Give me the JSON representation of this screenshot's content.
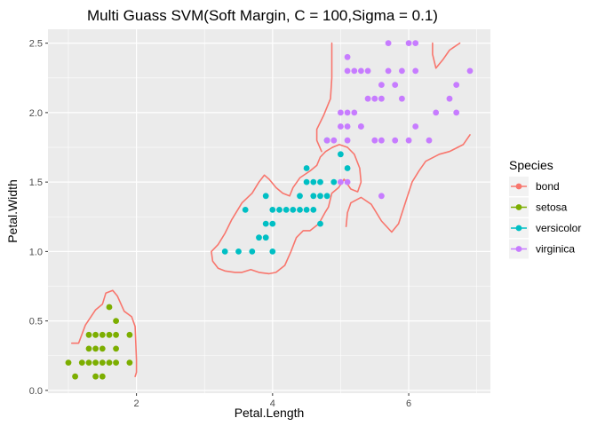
{
  "chart_data": {
    "type": "scatter",
    "title": "Multi Guass SVM(Soft Margin, C = 100,Sigma = 0.1)",
    "xlabel": "Petal.Length",
    "ylabel": "Petal.Width",
    "xlim": [
      0.7,
      7.2
    ],
    "ylim": [
      -0.02,
      2.6
    ],
    "x_ticks": [
      2,
      4,
      6
    ],
    "y_ticks": [
      0.0,
      0.5,
      1.0,
      1.5,
      2.0,
      2.5
    ],
    "x_tick_labels": [
      "2",
      "4",
      "6"
    ],
    "y_tick_labels": [
      "0.0",
      "0.5",
      "1.0",
      "1.5",
      "2.0",
      "2.5"
    ],
    "grid": true,
    "background": "#ebebeb",
    "legend": {
      "title": "Species",
      "placement": "right",
      "entries": [
        {
          "label": "bond",
          "color": "#F8766D"
        },
        {
          "label": "setosa",
          "color": "#7CAE00"
        },
        {
          "label": "versicolor",
          "color": "#00BFC4"
        },
        {
          "label": "virginica",
          "color": "#C77CFF"
        }
      ]
    },
    "series": [
      {
        "name": "setosa",
        "color": "#7CAE00",
        "points": [
          [
            1.0,
            0.2
          ],
          [
            1.1,
            0.1
          ],
          [
            1.2,
            0.2
          ],
          [
            1.3,
            0.2
          ],
          [
            1.3,
            0.3
          ],
          [
            1.3,
            0.4
          ],
          [
            1.4,
            0.1
          ],
          [
            1.4,
            0.2
          ],
          [
            1.4,
            0.3
          ],
          [
            1.5,
            0.1
          ],
          [
            1.5,
            0.2
          ],
          [
            1.5,
            0.3
          ],
          [
            1.5,
            0.4
          ],
          [
            1.6,
            0.2
          ],
          [
            1.6,
            0.4
          ],
          [
            1.7,
            0.2
          ],
          [
            1.7,
            0.3
          ],
          [
            1.7,
            0.4
          ],
          [
            1.7,
            0.5
          ],
          [
            1.6,
            0.6
          ],
          [
            1.9,
            0.2
          ],
          [
            1.9,
            0.4
          ],
          [
            1.4,
            0.4
          ]
        ]
      },
      {
        "name": "versicolor",
        "color": "#00BFC4",
        "points": [
          [
            3.3,
            1.0
          ],
          [
            3.5,
            1.0
          ],
          [
            3.6,
            1.3
          ],
          [
            3.7,
            1.0
          ],
          [
            3.8,
            1.1
          ],
          [
            3.9,
            1.1
          ],
          [
            3.9,
            1.2
          ],
          [
            3.9,
            1.4
          ],
          [
            4.0,
            1.0
          ],
          [
            4.0,
            1.2
          ],
          [
            4.0,
            1.3
          ],
          [
            4.1,
            1.3
          ],
          [
            4.2,
            1.3
          ],
          [
            4.3,
            1.3
          ],
          [
            4.4,
            1.3
          ],
          [
            4.4,
            1.4
          ],
          [
            4.5,
            1.3
          ],
          [
            4.5,
            1.5
          ],
          [
            4.5,
            1.6
          ],
          [
            4.6,
            1.3
          ],
          [
            4.6,
            1.4
          ],
          [
            4.7,
            1.2
          ],
          [
            4.7,
            1.4
          ],
          [
            4.7,
            1.5
          ],
          [
            4.8,
            1.8
          ],
          [
            4.9,
            1.5
          ],
          [
            5.0,
            1.7
          ],
          [
            5.1,
            1.6
          ],
          [
            4.6,
            1.5
          ],
          [
            4.8,
            1.4
          ]
        ]
      },
      {
        "name": "virginica",
        "color": "#C77CFF",
        "points": [
          [
            4.8,
            1.8
          ],
          [
            4.9,
            1.8
          ],
          [
            5.0,
            1.5
          ],
          [
            5.0,
            1.9
          ],
          [
            5.0,
            2.0
          ],
          [
            5.1,
            1.5
          ],
          [
            5.1,
            1.8
          ],
          [
            5.1,
            1.9
          ],
          [
            5.1,
            2.0
          ],
          [
            5.1,
            2.3
          ],
          [
            5.1,
            2.4
          ],
          [
            5.2,
            2.3
          ],
          [
            5.3,
            1.9
          ],
          [
            5.3,
            2.3
          ],
          [
            5.4,
            2.1
          ],
          [
            5.5,
            2.1
          ],
          [
            5.6,
            1.4
          ],
          [
            5.6,
            2.1
          ],
          [
            5.6,
            2.2
          ],
          [
            5.6,
            1.8
          ],
          [
            5.7,
            2.3
          ],
          [
            5.7,
            2.5
          ],
          [
            5.8,
            1.8
          ],
          [
            5.8,
            2.2
          ],
          [
            5.9,
            2.3
          ],
          [
            6.0,
            1.8
          ],
          [
            6.0,
            2.5
          ],
          [
            6.1,
            1.9
          ],
          [
            6.1,
            2.3
          ],
          [
            6.1,
            2.5
          ],
          [
            6.6,
            2.1
          ],
          [
            6.7,
            2.0
          ],
          [
            6.7,
            2.2
          ],
          [
            6.9,
            2.3
          ],
          [
            5.5,
            1.8
          ],
          [
            5.9,
            2.1
          ],
          [
            5.4,
            2.3
          ],
          [
            6.3,
            1.8
          ],
          [
            6.4,
            2.0
          ],
          [
            5.2,
            2.0
          ],
          [
            5.3,
            1.9
          ]
        ]
      }
    ],
    "boundary": {
      "name": "bond",
      "color": "#F8766D",
      "curves": [
        [
          [
            1.05,
            0.34
          ],
          [
            1.15,
            0.34
          ],
          [
            1.25,
            0.47
          ],
          [
            1.4,
            0.58
          ],
          [
            1.5,
            0.62
          ],
          [
            1.55,
            0.7
          ],
          [
            1.65,
            0.72
          ],
          [
            1.72,
            0.68
          ],
          [
            1.82,
            0.57
          ],
          [
            1.93,
            0.53
          ],
          [
            1.98,
            0.46
          ],
          [
            2.0,
            0.22
          ],
          [
            2.0,
            0.13
          ],
          [
            1.98,
            0.1
          ]
        ],
        [
          [
            3.1,
            1.0
          ],
          [
            3.2,
            1.05
          ],
          [
            3.3,
            1.13
          ],
          [
            3.4,
            1.23
          ],
          [
            3.55,
            1.35
          ],
          [
            3.7,
            1.42
          ],
          [
            3.8,
            1.5
          ],
          [
            3.88,
            1.55
          ],
          [
            3.95,
            1.52
          ],
          [
            4.05,
            1.46
          ],
          [
            4.15,
            1.42
          ],
          [
            4.25,
            1.4
          ],
          [
            4.3,
            1.46
          ],
          [
            4.4,
            1.53
          ],
          [
            4.55,
            1.58
          ],
          [
            4.65,
            1.62
          ],
          [
            4.7,
            1.68
          ],
          [
            4.78,
            1.72
          ],
          [
            4.88,
            1.75
          ],
          [
            4.98,
            1.77
          ],
          [
            5.1,
            1.75
          ],
          [
            5.2,
            1.7
          ],
          [
            5.28,
            1.6
          ],
          [
            5.3,
            1.5
          ],
          [
            5.25,
            1.43
          ],
          [
            5.15,
            1.45
          ],
          [
            5.05,
            1.52
          ],
          [
            4.97,
            1.46
          ],
          [
            4.87,
            1.42
          ],
          [
            4.82,
            1.32
          ],
          [
            4.77,
            1.28
          ],
          [
            4.68,
            1.2
          ],
          [
            4.55,
            1.15
          ],
          [
            4.45,
            1.15
          ],
          [
            4.35,
            1.1
          ],
          [
            4.27,
            1.0
          ],
          [
            4.18,
            0.9
          ],
          [
            4.05,
            0.85
          ],
          [
            3.95,
            0.84
          ],
          [
            3.8,
            0.85
          ],
          [
            3.68,
            0.87
          ],
          [
            3.55,
            0.85
          ],
          [
            3.45,
            0.85
          ],
          [
            3.3,
            0.86
          ],
          [
            3.2,
            0.88
          ],
          [
            3.12,
            0.93
          ],
          [
            3.1,
            1.0
          ]
        ],
        [
          [
            4.87,
            2.5
          ],
          [
            4.87,
            2.25
          ],
          [
            4.85,
            2.1
          ],
          [
            4.75,
            1.98
          ],
          [
            4.65,
            1.88
          ],
          [
            4.65,
            1.8
          ],
          [
            4.72,
            1.72
          ]
        ],
        [
          [
            5.08,
            1.18
          ],
          [
            5.1,
            1.28
          ],
          [
            5.15,
            1.35
          ],
          [
            5.3,
            1.39
          ],
          [
            5.45,
            1.34
          ],
          [
            5.6,
            1.22
          ],
          [
            5.75,
            1.14
          ],
          [
            5.85,
            1.2
          ],
          [
            5.95,
            1.35
          ],
          [
            6.05,
            1.5
          ],
          [
            6.15,
            1.58
          ],
          [
            6.25,
            1.65
          ],
          [
            6.45,
            1.7
          ],
          [
            6.6,
            1.72
          ],
          [
            6.8,
            1.77
          ],
          [
            6.9,
            1.84
          ]
        ],
        [
          [
            6.35,
            2.5
          ],
          [
            6.35,
            2.42
          ],
          [
            6.4,
            2.32
          ],
          [
            6.5,
            2.38
          ],
          [
            6.6,
            2.45
          ],
          [
            6.75,
            2.5
          ]
        ]
      ]
    }
  }
}
